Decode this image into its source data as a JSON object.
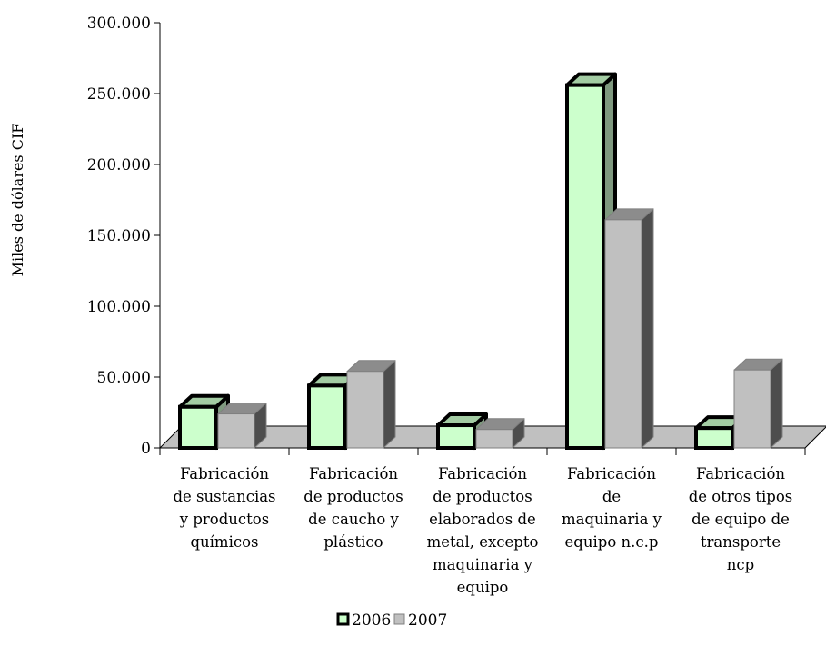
{
  "chart_data": {
    "type": "bar",
    "title": "",
    "ylabel": "Miles de dólares CIF",
    "xlabel": "",
    "ylim": [
      0,
      300000
    ],
    "yticks": [
      0,
      50000,
      100000,
      150000,
      200000,
      250000,
      300000
    ],
    "ytick_labels": [
      "0",
      "50.000",
      "100.000",
      "150.000",
      "200.000",
      "250.000",
      "300.000"
    ],
    "categories": [
      [
        "Fabricación",
        "de sustancias",
        "y  productos",
        "químicos"
      ],
      [
        "Fabricación",
        "de productos",
        "de caucho y",
        "plástico"
      ],
      [
        "Fabricación",
        "de productos",
        "elaborados de",
        "metal, excepto",
        "maquinaria y",
        "equipo"
      ],
      [
        "Fabricación",
        "de",
        "maquinaria y",
        "equipo n.c.p"
      ],
      [
        "Fabricación",
        "de otros tipos",
        "de equipo de",
        "transporte",
        "ncp"
      ]
    ],
    "series": [
      {
        "name": "2006",
        "values": [
          29000,
          44000,
          16000,
          256000,
          14000
        ],
        "color": "#ccffcc",
        "side": "#7f997f",
        "top": "#a3cca3"
      },
      {
        "name": "2007",
        "values": [
          24000,
          54000,
          13000,
          161000,
          55000
        ],
        "color": "#c0c0c0",
        "side": "#4d4d4d",
        "top": "#8c8c8c"
      }
    ],
    "legend_position": "bottom",
    "grid": false,
    "three_d": true
  }
}
